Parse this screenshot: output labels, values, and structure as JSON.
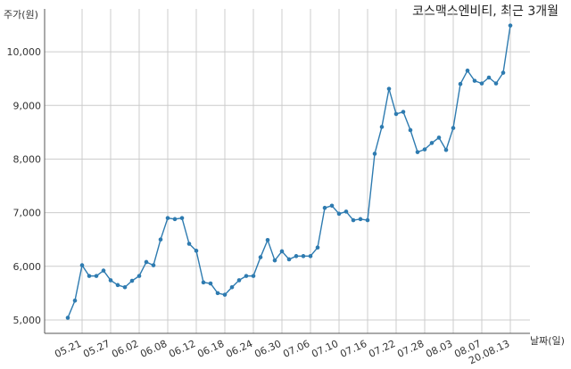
{
  "chart_data": {
    "type": "line",
    "title": "코스맥스엔비티, 최근 3개월",
    "ylabel": "주가(원)",
    "xlabel": "날짜(일)",
    "ylim": [
      4750,
      10800
    ],
    "yticks": [
      5000,
      6000,
      7000,
      8000,
      9000,
      10000
    ],
    "ytick_labels": [
      "5,000",
      "6,000",
      "7,000",
      "8,000",
      "9,000",
      "10,000"
    ],
    "xtick_labels": [
      "05.21",
      "05.27",
      "06.02",
      "06.08",
      "06.12",
      "06.18",
      "06.24",
      "06.30",
      "07.06",
      "07.10",
      "07.16",
      "07.22",
      "07.28",
      "08.03",
      "08.07",
      "20.08.13"
    ],
    "xtick_index": [
      2,
      6,
      10,
      14,
      18,
      22,
      26,
      30,
      34,
      38,
      42,
      46,
      50,
      54,
      58,
      62
    ],
    "grid": true,
    "color": "#2e7bb0",
    "series": [
      {
        "values": [
          5040,
          5360,
          6020,
          5820,
          5820,
          5920,
          5740,
          5650,
          5610,
          5730,
          5820,
          6080,
          6020,
          6500,
          6900,
          6880,
          6900,
          6420,
          6290,
          5700,
          5680,
          5500,
          5470,
          5610,
          5740,
          5820,
          5820,
          6170,
          6490,
          6110,
          6280,
          6130,
          6190,
          6190,
          6190,
          6350,
          7090,
          7130,
          6980,
          7020,
          6860,
          6880,
          6860,
          8100,
          8600,
          9310,
          8840,
          8880,
          8540,
          8130,
          8180,
          8300,
          8400,
          8170,
          8580,
          9400,
          9650,
          9460,
          9410,
          9520,
          9410,
          9610,
          10490
        ]
      }
    ]
  }
}
